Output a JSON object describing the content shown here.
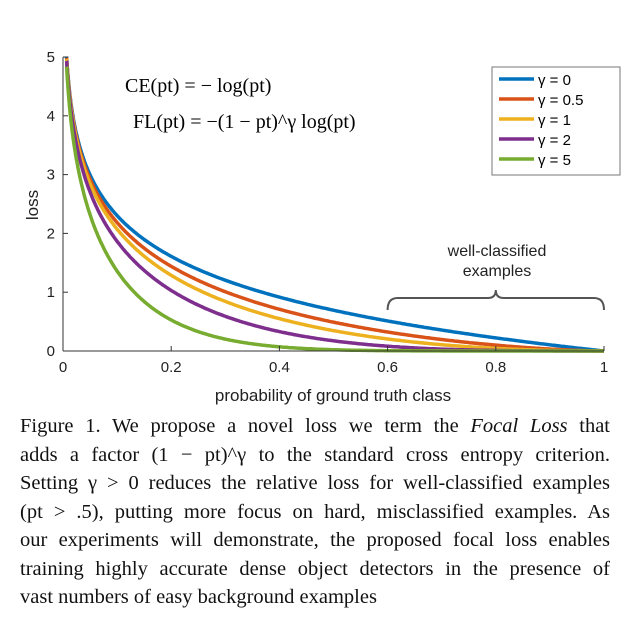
{
  "chart_data": {
    "type": "line",
    "xlabel": "probability of ground truth class",
    "ylabel": "loss",
    "xlim": [
      0,
      1
    ],
    "ylim": [
      0,
      5
    ],
    "xticks": [
      "0",
      "0.2",
      "0.4",
      "0.6",
      "0.8",
      "1"
    ],
    "yticks": [
      "0",
      "1",
      "2",
      "3",
      "4",
      "5"
    ],
    "formulas": [
      "CE(pt) = − log(pt)",
      "FL(pt) = −(1 − pt)^γ log(pt)"
    ],
    "legend_position": "top-right",
    "annotation": {
      "text": [
        "well-classified",
        "examples"
      ],
      "range": [
        0.6,
        1.0
      ]
    },
    "x": [
      0.01,
      0.05,
      0.1,
      0.2,
      0.4,
      0.6,
      0.8,
      1.0
    ],
    "series": [
      {
        "name": "γ = 0",
        "gamma": 0,
        "color": "#0072BD",
        "values": [
          4.61,
          3.0,
          2.3,
          1.61,
          0.92,
          0.51,
          0.22,
          0
        ]
      },
      {
        "name": "γ = 0.5",
        "gamma": 0.5,
        "color": "#D95319",
        "values": [
          4.58,
          2.92,
          2.18,
          1.44,
          0.71,
          0.32,
          0.1,
          0
        ]
      },
      {
        "name": "γ = 1",
        "gamma": 1,
        "color": "#EDB120",
        "values": [
          4.56,
          2.85,
          2.07,
          1.29,
          0.55,
          0.2,
          0.04,
          0
        ]
      },
      {
        "name": "γ = 2",
        "gamma": 2,
        "color": "#7E2F8E",
        "values": [
          4.51,
          2.7,
          1.87,
          1.03,
          0.33,
          0.08,
          0.01,
          0
        ]
      },
      {
        "name": "γ = 5",
        "gamma": 5,
        "color": "#77AC30",
        "values": [
          4.38,
          2.32,
          1.36,
          0.53,
          0.07,
          0.01,
          0.0,
          0
        ]
      }
    ]
  },
  "caption": {
    "l1a": "Figure 1. We propose a novel loss we term the ",
    "l1b": "Focal Loss",
    "l1c": " that",
    "l2": "adds a factor (1 − pt)^γ to the standard cross entropy criterion.",
    "l3": "Setting γ > 0 reduces the relative loss for well-classified examples",
    "l4": "(pt > .5), putting more focus on hard, misclassified examples. As",
    "l5": "our experiments will demonstrate, the proposed focal loss enables",
    "l6": "training highly accurate dense object detectors in the presence of",
    "l7": "vast numbers of easy background examples"
  }
}
